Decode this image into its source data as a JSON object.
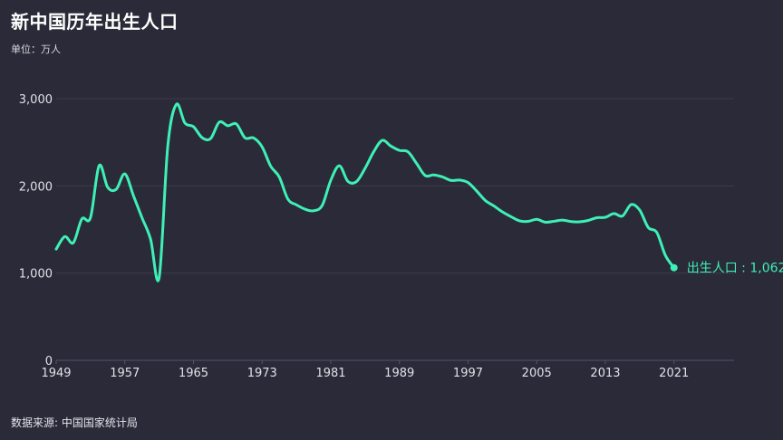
{
  "title": "新中国历年出生人口",
  "subtitle": "单位：万人",
  "source": "数据来源: 中国国家统计局",
  "colors": {
    "background": "#2b2a38",
    "line": "#3ef0b6",
    "grid": "#3c3b4a"
  },
  "chart_data": {
    "type": "line",
    "title": "新中国历年出生人口",
    "ylabel": "单位：万人",
    "xlabel": "",
    "ylim": [
      0,
      3000
    ],
    "xlim": [
      1949,
      2028
    ],
    "y_ticks": [
      0,
      1000,
      2000,
      3000
    ],
    "y_tick_labels": [
      "0",
      "1,000",
      "2,000",
      "3,000"
    ],
    "x_ticks": [
      1949,
      1957,
      1965,
      1973,
      1981,
      1989,
      1997,
      2005,
      2013,
      2021
    ],
    "x_tick_labels": [
      "1949",
      "1957",
      "1965",
      "1973",
      "1981",
      "1989",
      "1997",
      "2005",
      "2013",
      "2021"
    ],
    "grid": "horizontal",
    "series": [
      {
        "name": "出生人口",
        "end_label": "出生人口 : 1,062",
        "x": [
          1949,
          1950,
          1951,
          1952,
          1953,
          1954,
          1955,
          1956,
          1957,
          1958,
          1959,
          1960,
          1961,
          1962,
          1963,
          1964,
          1965,
          1966,
          1967,
          1968,
          1969,
          1970,
          1971,
          1972,
          1973,
          1974,
          1975,
          1976,
          1977,
          1978,
          1979,
          1980,
          1981,
          1982,
          1983,
          1984,
          1985,
          1986,
          1987,
          1988,
          1989,
          1990,
          1991,
          1992,
          1993,
          1994,
          1995,
          1996,
          1997,
          1998,
          1999,
          2000,
          2001,
          2002,
          2003,
          2004,
          2005,
          2006,
          2007,
          2008,
          2009,
          2010,
          2011,
          2012,
          2013,
          2014,
          2015,
          2016,
          2017,
          2018,
          2019,
          2020,
          2021
        ],
        "values": [
          1275,
          1419,
          1349,
          1622,
          1637,
          2232,
          1984,
          1961,
          2138,
          1889,
          1635,
          1389,
          949,
          2451,
          2934,
          2721,
          2679,
          2554,
          2543,
          2731,
          2690,
          2710,
          2551,
          2550,
          2447,
          2226,
          2102,
          1849,
          1783,
          1733,
          1715,
          1776,
          2064,
          2230,
          2052,
          2050,
          2202,
          2391,
          2522,
          2457,
          2407,
          2391,
          2258,
          2119,
          2126,
          2104,
          2063,
          2067,
          2038,
          1942,
          1834,
          1771,
          1702,
          1647,
          1599,
          1593,
          1617,
          1584,
          1594,
          1608,
          1591,
          1588,
          1604,
          1635,
          1640,
          1683,
          1655,
          1786,
          1723,
          1523,
          1465,
          1202,
          1062
        ],
        "final_value": 1062
      }
    ],
    "legend": "inline-end-label"
  }
}
